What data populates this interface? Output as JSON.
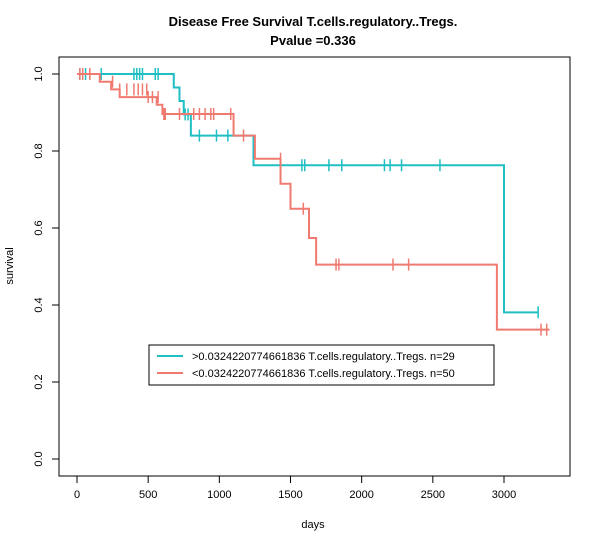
{
  "chart_data": {
    "type": "line",
    "title": "Disease Free Survival T.cells.regulatory..Tregs.",
    "subtitle": "Pvalue =0.336",
    "xlabel": "days",
    "ylabel": "survival",
    "xlim": [
      0,
      3330
    ],
    "ylim": [
      0,
      1.0
    ],
    "x_ticks": [
      0,
      500,
      1000,
      1500,
      2000,
      2500,
      3000
    ],
    "y_ticks": [
      0.0,
      0.2,
      0.4,
      0.6,
      0.8,
      1.0
    ],
    "x_tick_labels": [
      "0",
      "500",
      "1000",
      "1500",
      "2000",
      "2500",
      "3000"
    ],
    "y_tick_labels": [
      "0.0",
      "0.2",
      "0.4",
      "0.6",
      "0.8",
      "1.0"
    ],
    "grid": false,
    "legend_position": "bottom-center",
    "series": [
      {
        "name": ">0.0324220774661836 T.cells.regulatory..Tregs. n=29",
        "color": "#1fbfc3",
        "steps": [
          [
            0,
            1.0
          ],
          [
            680,
            0.965
          ],
          [
            720,
            0.93
          ],
          [
            750,
            0.895
          ],
          [
            800,
            0.84
          ],
          [
            1240,
            0.763
          ],
          [
            3000,
            0.763
          ],
          [
            3000,
            0.381
          ],
          [
            3240,
            0.381
          ]
        ],
        "censor": [
          [
            20,
            1.0
          ],
          [
            60,
            1.0
          ],
          [
            170,
            1.0
          ],
          [
            400,
            1.0
          ],
          [
            420,
            1.0
          ],
          [
            440,
            1.0
          ],
          [
            460,
            1.0
          ],
          [
            550,
            1.0
          ],
          [
            570,
            1.0
          ],
          [
            760,
            0.895
          ],
          [
            780,
            0.895
          ],
          [
            860,
            0.84
          ],
          [
            980,
            0.84
          ],
          [
            1060,
            0.84
          ],
          [
            1580,
            0.763
          ],
          [
            1600,
            0.763
          ],
          [
            1770,
            0.763
          ],
          [
            1860,
            0.763
          ],
          [
            2160,
            0.763
          ],
          [
            2200,
            0.763
          ],
          [
            2280,
            0.763
          ],
          [
            2550,
            0.763
          ],
          [
            3240,
            0.381
          ]
        ]
      },
      {
        "name": "<0.0324220774661836 T.cells.regulatory..Tregs. n=50",
        "color": "#f07a70",
        "steps": [
          [
            0,
            1.0
          ],
          [
            160,
            0.98
          ],
          [
            240,
            0.96
          ],
          [
            300,
            0.94
          ],
          [
            360,
            0.94
          ],
          [
            560,
            0.92
          ],
          [
            600,
            0.896
          ],
          [
            1100,
            0.84
          ],
          [
            1250,
            0.78
          ],
          [
            1430,
            0.715
          ],
          [
            1500,
            0.65
          ],
          [
            1630,
            0.574
          ],
          [
            1680,
            0.505
          ],
          [
            2950,
            0.505
          ],
          [
            2950,
            0.336
          ],
          [
            3320,
            0.336
          ]
        ],
        "censor": [
          [
            20,
            1.0
          ],
          [
            40,
            1.0
          ],
          [
            90,
            1.0
          ],
          [
            250,
            0.98
          ],
          [
            300,
            0.96
          ],
          [
            350,
            0.96
          ],
          [
            400,
            0.96
          ],
          [
            430,
            0.96
          ],
          [
            460,
            0.96
          ],
          [
            490,
            0.96
          ],
          [
            500,
            0.94
          ],
          [
            530,
            0.94
          ],
          [
            570,
            0.94
          ],
          [
            610,
            0.896
          ],
          [
            620,
            0.896
          ],
          [
            720,
            0.896
          ],
          [
            820,
            0.896
          ],
          [
            860,
            0.896
          ],
          [
            900,
            0.896
          ],
          [
            940,
            0.896
          ],
          [
            960,
            0.896
          ],
          [
            1080,
            0.896
          ],
          [
            1170,
            0.84
          ],
          [
            1430,
            0.78
          ],
          [
            1590,
            0.65
          ],
          [
            1820,
            0.505
          ],
          [
            1840,
            0.505
          ],
          [
            2220,
            0.505
          ],
          [
            2330,
            0.505
          ],
          [
            3260,
            0.336
          ],
          [
            3300,
            0.336
          ]
        ]
      }
    ]
  }
}
